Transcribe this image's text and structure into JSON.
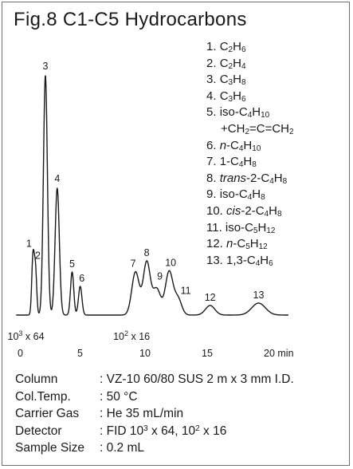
{
  "title": "Fig.8  C1-C5 Hydrocarbons",
  "chart_data": {
    "type": "line",
    "title": "Fig.8  C1-C5 Hydrocarbons",
    "xlabel": "",
    "ylabel": "",
    "x_unit": "min",
    "xlim": [
      0,
      21.5
    ],
    "x_ticks": [
      0,
      5,
      10,
      15,
      20
    ],
    "x_tick_labels": [
      "0",
      "5",
      "10",
      "15",
      "20 min"
    ],
    "attenuation_labels": [
      {
        "text_main": "10",
        "text_sup": "3",
        "text_rest": " x 64",
        "at_min": 0.8
      },
      {
        "text_main": "10",
        "text_sup": "2",
        "text_rest": " x 16",
        "at_min": 9.3
      }
    ],
    "peaks": [
      {
        "label": "1",
        "rt": 1.05,
        "height": 0.24,
        "width": 0.1
      },
      {
        "label": "2",
        "rt": 1.25,
        "height": 0.19,
        "width": 0.1
      },
      {
        "label": "3",
        "rt": 2.05,
        "height": 1.0,
        "width": 0.16
      },
      {
        "label": "4",
        "rt": 3.0,
        "height": 0.53,
        "width": 0.17
      },
      {
        "label": "5",
        "rt": 4.2,
        "height": 0.18,
        "width": 0.13
      },
      {
        "label": "6",
        "rt": 4.85,
        "height": 0.12,
        "width": 0.14
      },
      {
        "label": "7",
        "rt": 9.3,
        "height": 0.18,
        "width": 0.3
      },
      {
        "label": "8",
        "rt": 10.2,
        "height": 0.22,
        "width": 0.28
      },
      {
        "label": "9",
        "rt": 11.0,
        "height": 0.11,
        "width": 0.32
      },
      {
        "label": "10",
        "rt": 12.0,
        "height": 0.18,
        "width": 0.3
      },
      {
        "label": "11",
        "rt": 12.7,
        "height": 0.07,
        "width": 0.3
      },
      {
        "label": "12",
        "rt": 15.3,
        "height": 0.04,
        "width": 0.38
      },
      {
        "label": "13",
        "rt": 19.2,
        "height": 0.05,
        "width": 0.55
      }
    ]
  },
  "legend": [
    {
      "num": "1.",
      "parts": [
        {
          "t": "C"
        },
        {
          "t": "2",
          "sub": true
        },
        {
          "t": "H"
        },
        {
          "t": "6",
          "sub": true
        }
      ]
    },
    {
      "num": "2.",
      "parts": [
        {
          "t": "C"
        },
        {
          "t": "2",
          "sub": true
        },
        {
          "t": "H"
        },
        {
          "t": "4",
          "sub": true
        }
      ]
    },
    {
      "num": "3.",
      "parts": [
        {
          "t": "C"
        },
        {
          "t": "3",
          "sub": true
        },
        {
          "t": "H"
        },
        {
          "t": "8",
          "sub": true
        }
      ]
    },
    {
      "num": "4.",
      "parts": [
        {
          "t": "C"
        },
        {
          "t": "3",
          "sub": true
        },
        {
          "t": "H"
        },
        {
          "t": "6",
          "sub": true
        }
      ]
    },
    {
      "num": "5.",
      "parts": [
        {
          "t": "iso-C"
        },
        {
          "t": "4",
          "sub": true
        },
        {
          "t": "H"
        },
        {
          "t": "10",
          "sub": true
        }
      ]
    },
    {
      "num": "",
      "indent": true,
      "parts": [
        {
          "t": "+CH"
        },
        {
          "t": "2",
          "sub": true
        },
        {
          "t": "=C=CH"
        },
        {
          "t": "2",
          "sub": true
        }
      ]
    },
    {
      "num": "6.",
      "parts": [
        {
          "t": "n",
          "it": true
        },
        {
          "t": "-C"
        },
        {
          "t": "4",
          "sub": true
        },
        {
          "t": "H"
        },
        {
          "t": "10",
          "sub": true
        }
      ]
    },
    {
      "num": "7.",
      "parts": [
        {
          "t": "1-C"
        },
        {
          "t": "4",
          "sub": true
        },
        {
          "t": "H"
        },
        {
          "t": "8",
          "sub": true
        }
      ]
    },
    {
      "num": "8.",
      "parts": [
        {
          "t": "trans",
          "it": true
        },
        {
          "t": "-2-C"
        },
        {
          "t": "4",
          "sub": true
        },
        {
          "t": "H"
        },
        {
          "t": "8",
          "sub": true
        }
      ]
    },
    {
      "num": "9.",
      "parts": [
        {
          "t": "iso-C"
        },
        {
          "t": "4",
          "sub": true
        },
        {
          "t": "H"
        },
        {
          "t": "8",
          "sub": true
        }
      ]
    },
    {
      "num": "10.",
      "parts": [
        {
          "t": "cis",
          "it": true
        },
        {
          "t": "-2-C"
        },
        {
          "t": "4",
          "sub": true
        },
        {
          "t": "H"
        },
        {
          "t": "8",
          "sub": true
        }
      ]
    },
    {
      "num": "11.",
      "parts": [
        {
          "t": "iso-C"
        },
        {
          "t": "5",
          "sub": true
        },
        {
          "t": "H"
        },
        {
          "t": "12",
          "sub": true
        }
      ]
    },
    {
      "num": "12.",
      "parts": [
        {
          "t": "n",
          "it": true
        },
        {
          "t": "-C"
        },
        {
          "t": "5",
          "sub": true
        },
        {
          "t": "H"
        },
        {
          "t": "12",
          "sub": true
        }
      ]
    },
    {
      "num": "13.",
      "parts": [
        {
          "t": "1,3-C"
        },
        {
          "t": "4",
          "sub": true
        },
        {
          "t": "H"
        },
        {
          "t": "6",
          "sub": true
        }
      ]
    }
  ],
  "conditions": [
    {
      "label": "Column",
      "sep": ": ",
      "value": [
        {
          "t": "VZ-10 60/80 SUS 2 m x 3 mm I.D."
        }
      ]
    },
    {
      "label": "Col.Temp.",
      "sep": ": ",
      "value": [
        {
          "t": "50 °C"
        }
      ]
    },
    {
      "label": "Carrier Gas",
      "sep": ": ",
      "value": [
        {
          "t": "He 35 mL/min"
        }
      ]
    },
    {
      "label": "Detector",
      "sep": ": ",
      "value": [
        {
          "t": "FID 10"
        },
        {
          "t": "3",
          "sup": true
        },
        {
          "t": " x 64, 10"
        },
        {
          "t": "2",
          "sup": true
        },
        {
          "t": " x 16"
        }
      ]
    },
    {
      "label": "Sample Size",
      "sep": ": ",
      "value": [
        {
          "t": "0.2 mL"
        }
      ]
    }
  ]
}
